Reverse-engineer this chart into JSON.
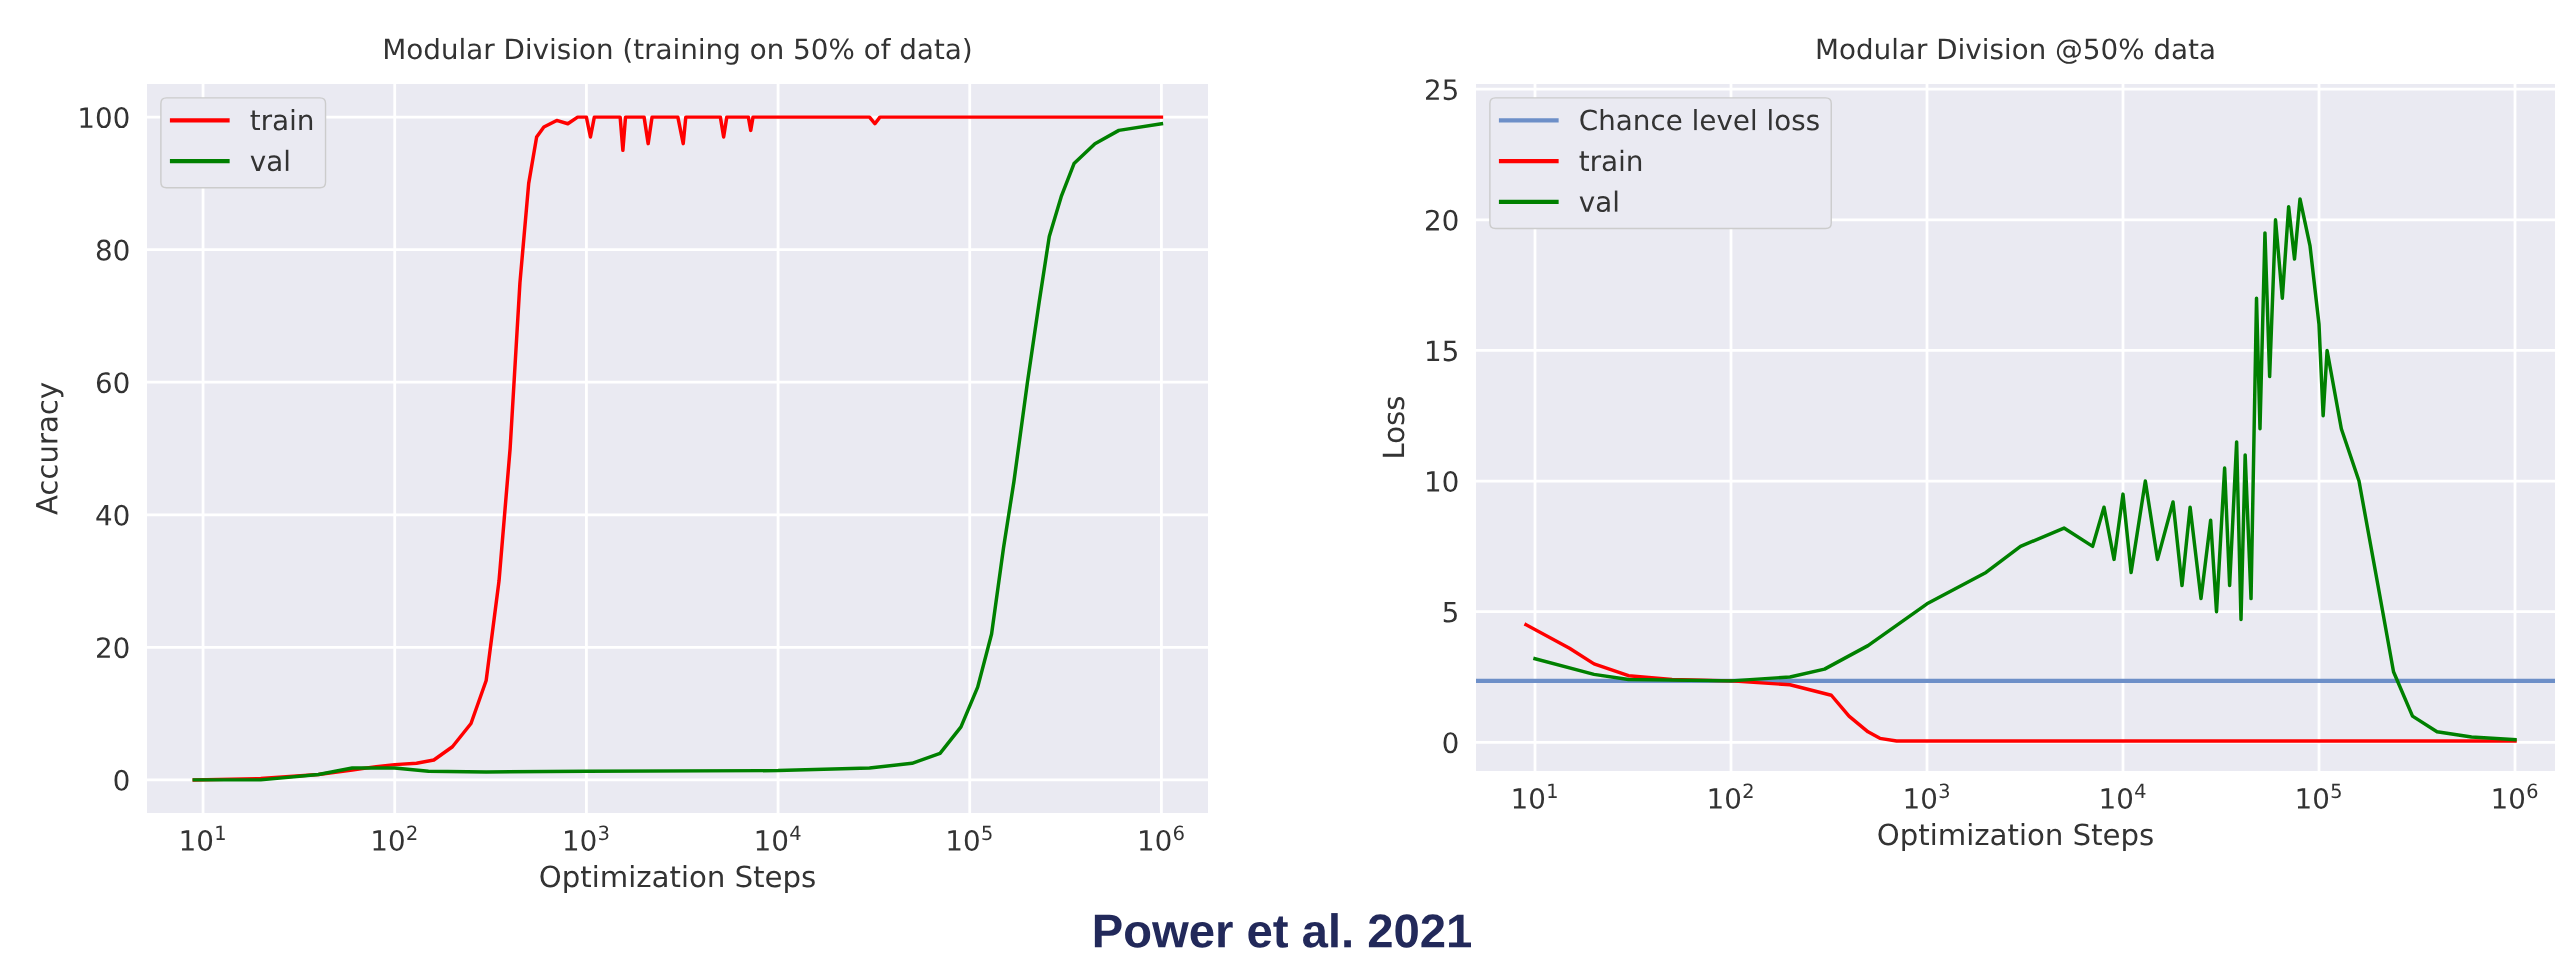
{
  "chart_data": [
    {
      "type": "line",
      "title": "Modular Division (training on 50% of data)",
      "xlabel": "Optimization Steps",
      "ylabel": "Accuracy",
      "log": "x",
      "grid": true,
      "legend": "top left",
      "xlim": [
        5.1,
        1750000
      ],
      "xticks": [
        {
          "value": 10,
          "label": "10$^{1}$"
        },
        {
          "value": 100,
          "label": "10$^{2}$"
        },
        {
          "value": 1000,
          "label": "10$^{3}$"
        },
        {
          "value": 10000,
          "label": "10$^{4}$"
        },
        {
          "value": 100000,
          "label": "10$^{5}$"
        },
        {
          "value": 1000000,
          "label": "10$^{6}$"
        }
      ],
      "ylim": [
        -5,
        105
      ],
      "yticks": [
        0,
        20,
        40,
        60,
        80,
        100
      ],
      "annotations": [
        "Power et al. 2021"
      ],
      "series": [
        {
          "name": "train",
          "color": "#ff0000",
          "x": [
            9,
            20,
            40,
            60,
            80,
            100,
            130,
            160,
            200,
            250,
            300,
            350,
            400,
            450,
            500,
            550,
            600,
            700,
            800,
            900,
            1000,
            1050,
            1100,
            1500,
            1550,
            1600,
            2000,
            2100,
            2200,
            3000,
            3200,
            3300,
            5000,
            5200,
            5400,
            7000,
            7200,
            7400,
            10000,
            30000,
            32000,
            34000,
            1000000
          ],
          "values": [
            0,
            0.2,
            0.8,
            1.5,
            2,
            2.3,
            2.5,
            3,
            5,
            8.5,
            15,
            30,
            50,
            75,
            90,
            97,
            98.5,
            99.5,
            99,
            100,
            100,
            97,
            100,
            100,
            95,
            100,
            100,
            96,
            100,
            100,
            96,
            100,
            100,
            97,
            100,
            100,
            98,
            100,
            100,
            100,
            99,
            100,
            100
          ]
        },
        {
          "name": "val",
          "color": "#008000",
          "x": [
            9,
            20,
            40,
            60,
            100,
            150,
            300,
            1000,
            10000,
            30000,
            50000,
            70000,
            90000,
            110000,
            130000,
            150000,
            170000,
            200000,
            230000,
            260000,
            300000,
            350000,
            450000,
            600000,
            1000000
          ],
          "values": [
            0,
            0,
            0.8,
            1.8,
            1.8,
            1.3,
            1.2,
            1.3,
            1.4,
            1.8,
            2.5,
            4,
            8,
            14,
            22,
            35,
            45,
            60,
            72,
            82,
            88,
            93,
            96,
            98,
            99
          ]
        }
      ]
    },
    {
      "type": "line",
      "title": "Modular Division @50% data",
      "xlabel": "Optimization Steps",
      "ylabel": "Loss",
      "log": "x",
      "grid": true,
      "legend": "top left",
      "xlim": [
        5,
        1600000
      ],
      "xticks": [
        {
          "value": 10,
          "label": "10$^{1}$"
        },
        {
          "value": 100,
          "label": "10$^{2}$"
        },
        {
          "value": 1000,
          "label": "10$^{3}$"
        },
        {
          "value": 10000,
          "label": "10$^{4}$"
        },
        {
          "value": 100000,
          "label": "10$^{5}$"
        },
        {
          "value": 1000000,
          "label": "10$^{6}$"
        }
      ],
      "ylim": [
        -1.1,
        25.2
      ],
      "yticks": [
        0,
        5,
        10,
        15,
        20,
        25
      ],
      "ref_lines": [
        {
          "axis": "y",
          "value": 2.35,
          "label": "Chance level loss",
          "color": "#6d8fc8"
        }
      ],
      "series": [
        {
          "name": "train",
          "color": "#ff0000",
          "x": [
            9,
            15,
            20,
            30,
            50,
            100,
            200,
            325,
            400,
            500,
            575,
            700,
            1000,
            1000000
          ],
          "values": [
            4.5,
            3.6,
            3,
            2.55,
            2.4,
            2.35,
            2.2,
            1.8,
            1.0,
            0.4,
            0.15,
            0.05,
            0.05,
            0.05
          ]
        },
        {
          "name": "val",
          "color": "#008000",
          "x": [
            10,
            20,
            30,
            100,
            200,
            300,
            500,
            1000,
            2000,
            3000,
            5000,
            7000,
            8000,
            9000,
            10000,
            11000,
            13000,
            15000,
            18000,
            20000,
            22000,
            25000,
            28000,
            30000,
            33000,
            35000,
            38000,
            40000,
            42000,
            45000,
            48000,
            50000,
            53000,
            56000,
            60000,
            65000,
            70000,
            75000,
            80000,
            90000,
            100000,
            105000,
            110000,
            130000,
            160000,
            200000,
            240000,
            300000,
            400000,
            600000,
            1000000
          ],
          "values": [
            3.2,
            2.6,
            2.4,
            2.35,
            2.5,
            2.8,
            3.7,
            5.3,
            6.5,
            7.5,
            8.2,
            7.5,
            9,
            7,
            9.5,
            6.5,
            10,
            7,
            9.2,
            6,
            9,
            5.5,
            8.5,
            5,
            10.5,
            6,
            11.5,
            4.7,
            11,
            5.5,
            17,
            12,
            19.5,
            14,
            20,
            17,
            20.5,
            18.5,
            20.8,
            19,
            16,
            12.5,
            15,
            12,
            10,
            6,
            2.7,
            1,
            0.4,
            0.2,
            0.1
          ]
        }
      ]
    }
  ]
}
